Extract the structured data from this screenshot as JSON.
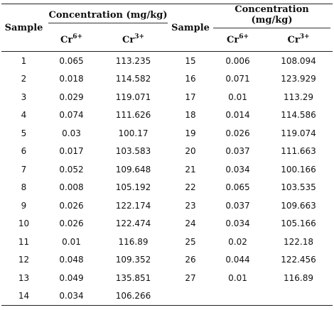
{
  "header": {
    "sample": "Sample",
    "concentration": "Concentration (mg/kg)",
    "cr6_base": "Cr",
    "cr6_sup": "6+",
    "cr3_base": "Cr",
    "cr3_sup": "3+"
  },
  "rows": [
    {
      "s1": "1",
      "a1": "0.065",
      "b1": "113.235",
      "s2": "15",
      "a2": "0.006",
      "b2": "108.094"
    },
    {
      "s1": "2",
      "a1": "0.018",
      "b1": "114.582",
      "s2": "16",
      "a2": "0.071",
      "b2": "123.929"
    },
    {
      "s1": "3",
      "a1": "0.029",
      "b1": "119.071",
      "s2": "17",
      "a2": "0.01",
      "b2": "113.29"
    },
    {
      "s1": "4",
      "a1": "0.074",
      "b1": "111.626",
      "s2": "18",
      "a2": "0.014",
      "b2": "114.586"
    },
    {
      "s1": "5",
      "a1": "0.03",
      "b1": "100.17",
      "s2": "19",
      "a2": "0.026",
      "b2": "119.074"
    },
    {
      "s1": "6",
      "a1": "0.017",
      "b1": "103.583",
      "s2": "20",
      "a2": "0.037",
      "b2": "111.663"
    },
    {
      "s1": "7",
      "a1": "0.052",
      "b1": "109.648",
      "s2": "21",
      "a2": "0.034",
      "b2": "100.166"
    },
    {
      "s1": "8",
      "a1": "0.008",
      "b1": "105.192",
      "s2": "22",
      "a2": "0.065",
      "b2": "103.535"
    },
    {
      "s1": "9",
      "a1": "0.026",
      "b1": "122.174",
      "s2": "23",
      "a2": "0.037",
      "b2": "109.663"
    },
    {
      "s1": "10",
      "a1": "0.026",
      "b1": "122.474",
      "s2": "24",
      "a2": "0.034",
      "b2": "105.166"
    },
    {
      "s1": "11",
      "a1": "0.01",
      "b1": "116.89",
      "s2": "25",
      "a2": "0.02",
      "b2": "122.18"
    },
    {
      "s1": "12",
      "a1": "0.048",
      "b1": "109.352",
      "s2": "26",
      "a2": "0.044",
      "b2": "122.456"
    },
    {
      "s1": "13",
      "a1": "0.049",
      "b1": "135.851",
      "s2": "27",
      "a2": "0.01",
      "b2": "116.89"
    },
    {
      "s1": "14",
      "a1": "0.034",
      "b1": "106.266",
      "s2": "",
      "a2": "",
      "b2": ""
    }
  ]
}
